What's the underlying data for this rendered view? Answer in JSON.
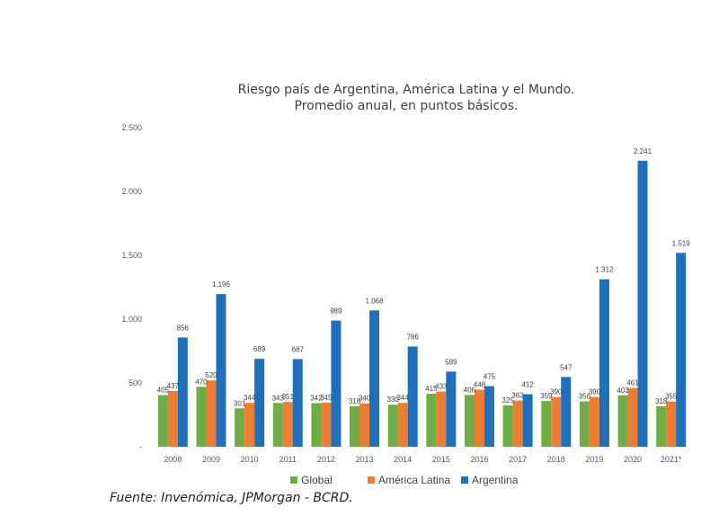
{
  "chart_data": {
    "type": "bar",
    "title_lines": [
      "Riesgo país de Argentina, América Latina y el Mundo.",
      "Promedio anual, en puntos básicos."
    ],
    "categories": [
      "2008",
      "2009",
      "2010",
      "2011",
      "2012",
      "2013",
      "2014",
      "2015",
      "2016",
      "2017",
      "2018",
      "2019",
      "2020",
      "2021*"
    ],
    "series": [
      {
        "name": "Global",
        "color": "#70ad47",
        "values": [
          405,
          470,
          301,
          343,
          342,
          318,
          330,
          415,
          406,
          325,
          359,
          356,
          403,
          318
        ],
        "labels": [
          "405",
          "470",
          "301",
          "343",
          "342",
          "318",
          "330",
          "415",
          "406",
          "325",
          "359",
          "356",
          "403",
          "318"
        ]
      },
      {
        "name": "América Latina",
        "color": "#ed7d31",
        "values": [
          437,
          520,
          344,
          351,
          345,
          340,
          344,
          433,
          448,
          362,
          390,
          390,
          461,
          355
        ],
        "labels": [
          "437",
          "520",
          "344",
          "351",
          "345",
          "340",
          "344",
          "433",
          "448",
          "362",
          "390",
          "390",
          "461",
          "355"
        ]
      },
      {
        "name": "Argentina",
        "color": "#1f6fba",
        "values": [
          856,
          1196,
          689,
          687,
          989,
          1068,
          786,
          589,
          475,
          412,
          547,
          1312,
          2241,
          1519
        ],
        "labels": [
          "856",
          "1.196",
          "689",
          "687",
          "989",
          "1.068",
          "786",
          "589",
          "475",
          "412",
          "547",
          "1.312",
          "2.241",
          "1.519"
        ]
      }
    ],
    "y_ticks": [
      0,
      500,
      1000,
      1500,
      2000,
      2500
    ],
    "y_tick_labels": [
      "-",
      "500",
      "1.000",
      "1.500",
      "2.000",
      "2.500"
    ],
    "ylim": [
      0,
      2500
    ],
    "grid": false,
    "legend_position": "bottom"
  },
  "source": "Fuente: Invenómica, JPMorgan - BCRD."
}
